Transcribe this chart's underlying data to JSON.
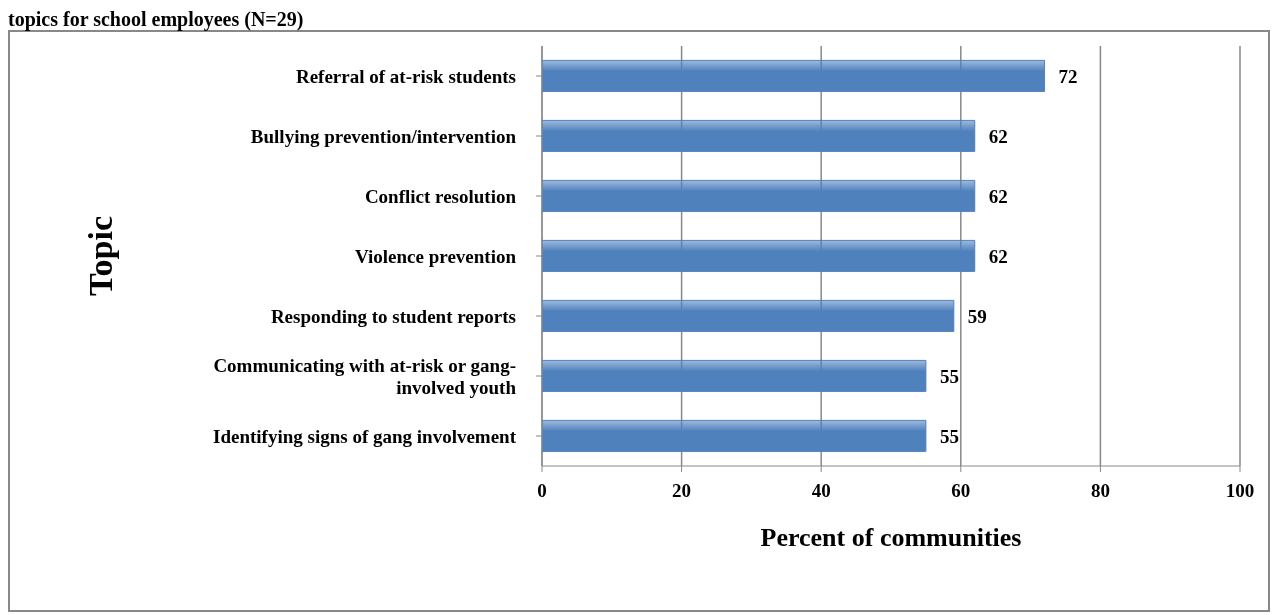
{
  "chart_data": {
    "type": "bar",
    "orientation": "horizontal",
    "title": "topics for school employees (N=29)",
    "xlabel": "Percent of communities",
    "ylabel": "Topic",
    "categories": [
      "Referral of at-risk students",
      "Bullying prevention/intervention",
      "Conflict resolution",
      "Violence prevention",
      "Responding to student  reports",
      "Communicating with at-risk or gang-involved youth",
      "Identifying signs of gang involvement"
    ],
    "values": [
      72,
      62,
      62,
      62,
      59,
      55,
      55
    ],
    "color": "#4f81bd",
    "xlim": [
      0,
      100
    ],
    "xticks": [
      0,
      20,
      40,
      60,
      80,
      100
    ],
    "grid": "x",
    "data_labels": true,
    "legend": false
  }
}
